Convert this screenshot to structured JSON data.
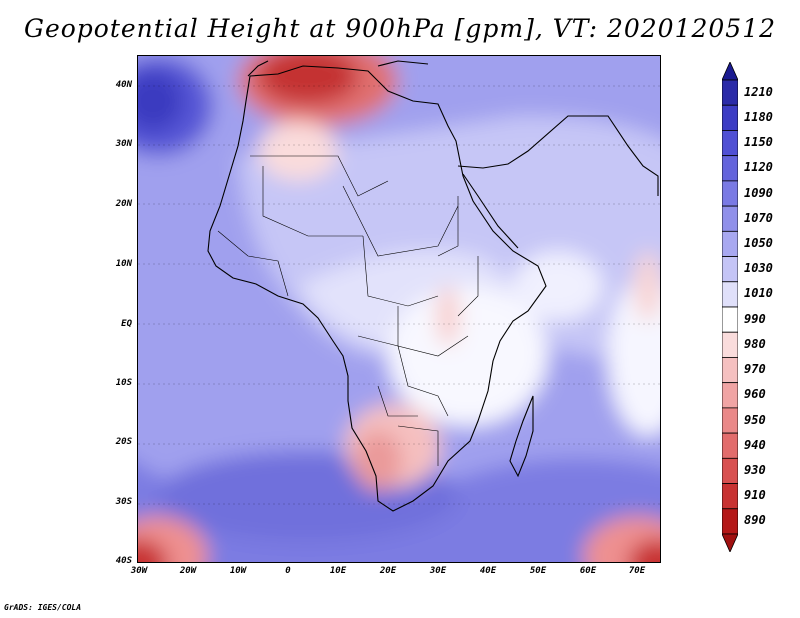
{
  "title": "Geopotential Height at 900hPa [gpm], VT: 2020120512",
  "lat_labels": [
    "40N",
    "30N",
    "20N",
    "10N",
    "EQ",
    "10S",
    "20S",
    "30S",
    "40S"
  ],
  "lon_labels": [
    "30W",
    "20W",
    "10W",
    "0",
    "10E",
    "20E",
    "30E",
    "40E",
    "50E",
    "60E",
    "70E"
  ],
  "colorbar": {
    "labels": [
      "1210",
      "1180",
      "1150",
      "1120",
      "1090",
      "1070",
      "1050",
      "1030",
      "1010",
      "990",
      "980",
      "970",
      "960",
      "950",
      "940",
      "930",
      "910",
      "890"
    ],
    "colors": [
      "#2a2aa8",
      "#3c3cc4",
      "#5050d4",
      "#6464dc",
      "#7a7ae4",
      "#9090ea",
      "#a8a8f0",
      "#c4c4f6",
      "#e0e0fa",
      "#ffffff",
      "#fadcdc",
      "#f5c0c0",
      "#f0a4a4",
      "#ea8888",
      "#e26c6c",
      "#d85050",
      "#c83232",
      "#b41818"
    ]
  },
  "credit": "GrADS: IGES/COLA"
}
